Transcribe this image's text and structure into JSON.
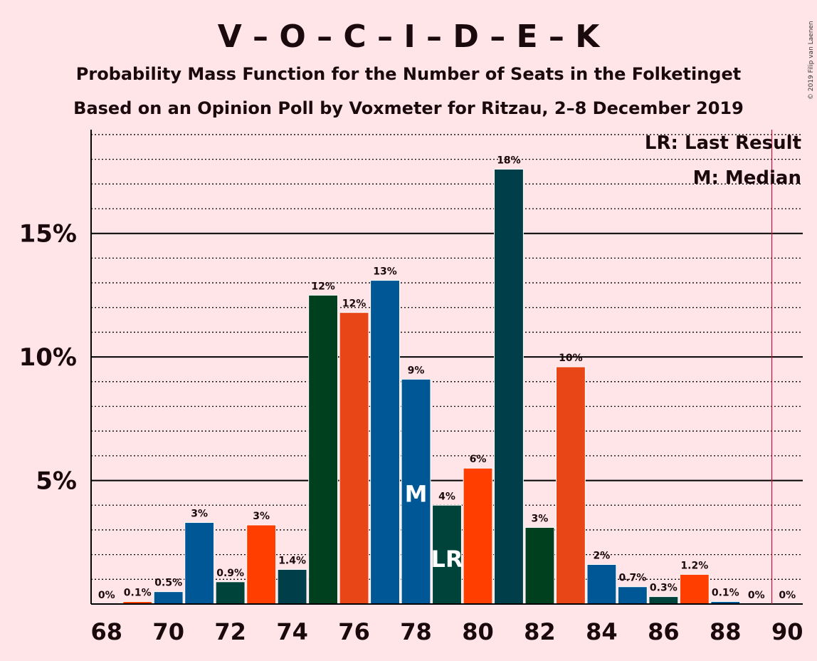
{
  "title": "V – O – C – I – D – E – K",
  "subtitle1": "Probability Mass Function for the Number of Seats in the Folketinget",
  "subtitle2": "Based on an Opinion Poll by Voxmeter for Ritzau, 2–8 December 2019",
  "copyright": "© 2019 Filip van Laenen",
  "legend": {
    "lr": "LR: Last Result",
    "m": "M: Median"
  },
  "markers": {
    "median": "M",
    "last_result": "LR"
  },
  "colors": {
    "background": "#FFE4E8",
    "blue": "#005796",
    "dark_green": "#00401F",
    "dark_teal": "#003F4A",
    "teal_green": "#00433B",
    "orange": "#E84616",
    "red_orange": "#FF3E00",
    "majority_line": "#C0133D"
  },
  "chart_data": {
    "type": "bar",
    "x": [
      68,
      69,
      70,
      71,
      72,
      73,
      74,
      75,
      76,
      77,
      78,
      79,
      80,
      81,
      82,
      83,
      84,
      85,
      86,
      87,
      88,
      89,
      90
    ],
    "values": [
      0,
      0.1,
      0.5,
      3.3,
      0.9,
      3.2,
      1.4,
      12.5,
      11.8,
      13.1,
      9.1,
      4.0,
      5.5,
      17.6,
      3.1,
      9.6,
      1.6,
      0.7,
      0.3,
      1.2,
      0.1,
      0,
      0
    ],
    "data_labels": [
      "0%",
      "0.1%",
      "0.5%",
      "3%",
      "0.9%",
      "3%",
      "1.4%",
      "12%",
      "12%",
      "13%",
      "9%",
      "4%",
      "6%",
      "18%",
      "3%",
      "10%",
      "2%",
      "0.7%",
      "0.3%",
      "1.2%",
      "0.1%",
      "0%",
      "0%"
    ],
    "bar_colors": [
      "blue",
      "red_orange",
      "blue",
      "blue",
      "teal_green",
      "red_orange",
      "dark_teal",
      "dark_green",
      "orange",
      "blue",
      "blue",
      "teal_green",
      "red_orange",
      "dark_teal",
      "dark_green",
      "orange",
      "blue",
      "blue",
      "teal_green",
      "red_orange",
      "blue",
      "blue",
      "blue"
    ],
    "x_tick_labels": [
      "68",
      "70",
      "72",
      "74",
      "76",
      "78",
      "80",
      "82",
      "84",
      "86",
      "88",
      "90"
    ],
    "y_ticks": [
      5,
      10,
      15
    ],
    "y_tick_labels": [
      "5%",
      "10%",
      "15%"
    ],
    "ylim": [
      0,
      19.2
    ],
    "xlim": [
      67.5,
      90.5
    ],
    "median": 78,
    "last_result": 79,
    "majority": 89.5,
    "grid": true
  }
}
